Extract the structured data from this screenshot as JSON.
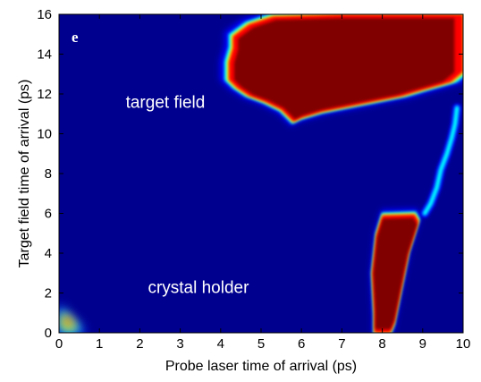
{
  "chart_data": {
    "type": "heatmap",
    "title": "",
    "panel_label": "e",
    "xlabel": "Probe laser time of arrival (ps)",
    "ylabel": "Target field time of arrival (ps)",
    "xlim": [
      0,
      10
    ],
    "ylim": [
      0,
      16
    ],
    "xticks": [
      "0",
      "1",
      "2",
      "3",
      "4",
      "5",
      "6",
      "7",
      "8",
      "9",
      "10"
    ],
    "yticks": [
      "0",
      "2",
      "4",
      "6",
      "8",
      "10",
      "12",
      "14",
      "16"
    ],
    "colormap": [
      "#00008f",
      "#0000ff",
      "#00ffff",
      "#ffff00",
      "#ff0000",
      "#800000"
    ],
    "background_color": "#00008f",
    "annotations": [
      {
        "text": "target field",
        "x": 1.65,
        "y": 11.3
      },
      {
        "text": "crystal holder",
        "x": 2.2,
        "y": 2.0
      }
    ],
    "regions": [
      {
        "name": "target field",
        "intensity": "high",
        "outline": [
          [
            4.3,
            14.9
          ],
          [
            4.7,
            15.5
          ],
          [
            5.3,
            15.9
          ],
          [
            7,
            16
          ],
          [
            10,
            16
          ],
          [
            10,
            13.1
          ],
          [
            9.7,
            12.6
          ],
          [
            9,
            12.2
          ],
          [
            8.5,
            11.9
          ],
          [
            8,
            11.7
          ],
          [
            7.5,
            11.5
          ],
          [
            7,
            11.3
          ],
          [
            6.5,
            11.1
          ],
          [
            6,
            10.8
          ],
          [
            5.8,
            10.6
          ],
          [
            5.5,
            11.2
          ],
          [
            5.1,
            11.6
          ],
          [
            4.7,
            11.9
          ],
          [
            4.4,
            12.3
          ],
          [
            4.2,
            12.7
          ],
          [
            4.2,
            13.6
          ],
          [
            4.3,
            14.3
          ]
        ]
      },
      {
        "name": "crystal holder",
        "intensity": "high",
        "outline": [
          [
            7.85,
            4.9
          ],
          [
            8.0,
            5.9
          ],
          [
            8.8,
            5.95
          ],
          [
            8.9,
            5.6
          ],
          [
            8.65,
            4.0
          ],
          [
            8.45,
            2.0
          ],
          [
            8.3,
            0.5
          ],
          [
            8.2,
            0
          ],
          [
            7.8,
            0
          ],
          [
            7.8,
            1.0
          ],
          [
            7.75,
            3.0
          ]
        ]
      },
      {
        "name": "corner",
        "intensity": "medium",
        "outline": [
          [
            0,
            1.3
          ],
          [
            0.1,
            1.1
          ],
          [
            0.25,
            0.8
          ],
          [
            0.4,
            0.5
          ],
          [
            0.6,
            0
          ],
          [
            0,
            0
          ]
        ]
      }
    ],
    "streak": [
      [
        9.05,
        6.0
      ],
      [
        9.2,
        6.5
      ],
      [
        9.35,
        7.3
      ],
      [
        9.45,
        8.2
      ],
      [
        9.6,
        9.0
      ],
      [
        9.72,
        9.8
      ],
      [
        9.8,
        10.5
      ],
      [
        9.85,
        11.3
      ]
    ]
  }
}
